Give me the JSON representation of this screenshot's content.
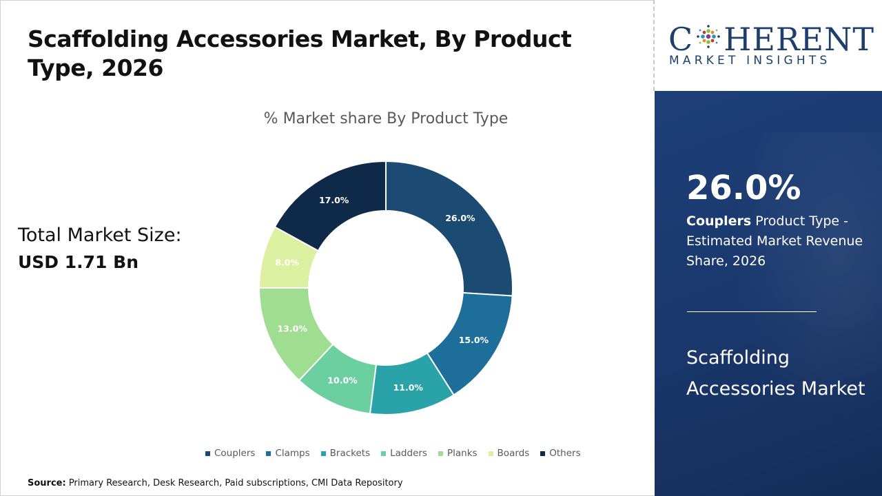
{
  "header": {
    "title": "Scaffolding Accessories Market, By Product Type, 2026"
  },
  "summary": {
    "label": "Total Market Size:",
    "value": "USD 1.71 Bn"
  },
  "logo": {
    "top_before": "C",
    "top_after": "HERENT",
    "bottom": "MARKET INSIGHTS"
  },
  "side_panel": {
    "percent": "26.0%",
    "segment_bold": "Couplers",
    "segment_rest": " Product Type - Estimated Market Revenue Share, 2026",
    "market_name": "Scaffolding Accessories Market"
  },
  "source": {
    "label": "Source:",
    "text": " Primary Research, Desk Research, Paid subscriptions, CMI Data Repository"
  },
  "colors": {
    "accent": "#1d3f78"
  },
  "chart_data": {
    "type": "pie",
    "title": "% Market share By Product Type",
    "categories": [
      "Couplers",
      "Clamps",
      "Brackets",
      "Ladders",
      "Planks",
      "Boards",
      "Others"
    ],
    "values": [
      26.0,
      15.0,
      11.0,
      10.0,
      13.0,
      8.0,
      17.0
    ],
    "labels": [
      "26.0%",
      "15.0%",
      "11.0%",
      "10.0%",
      "13.0%",
      "8.0%",
      "17.0%"
    ],
    "colors": [
      "#1b4a72",
      "#1d6f9a",
      "#2aa3a8",
      "#6ccf9f",
      "#9fdd91",
      "#ddefa0",
      "#0f2a48"
    ],
    "label_colors": [
      "#ffffff",
      "#ffffff",
      "#ffffff",
      "#ffffff",
      "#ffffff",
      "#ffffff",
      "#ffffff"
    ],
    "legend_position": "bottom",
    "donut": true
  }
}
